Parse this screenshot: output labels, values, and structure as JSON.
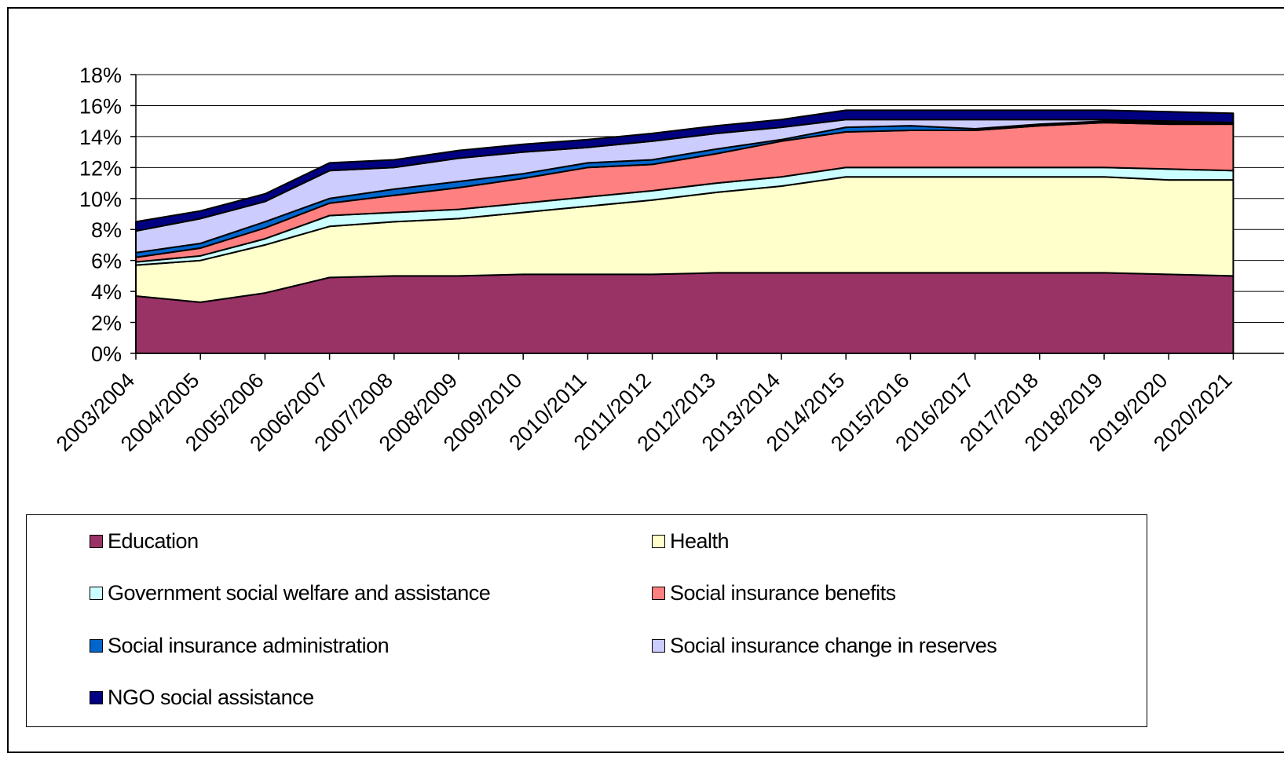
{
  "chart_data": {
    "type": "area",
    "stacked": true,
    "categories": [
      "2003/2004",
      "2004/2005",
      "2005/2006",
      "2006/2007",
      "2007/2008",
      "2008/2009",
      "2009/2010",
      "2010/2011",
      "2011/2012",
      "2012/2013",
      "2013/2014",
      "2014/2015",
      "2015/2016",
      "2016/2017",
      "2017/2018",
      "2018/2019",
      "2019/2020",
      "2020/2021"
    ],
    "y_tick_labels": [
      "0%",
      "2%",
      "4%",
      "6%",
      "8%",
      "10%",
      "12%",
      "14%",
      "16%",
      "18%"
    ],
    "ylim": [
      0,
      18
    ],
    "grid": true,
    "legend_position": "bottom",
    "series": [
      {
        "name": "Education",
        "color": "#993366",
        "values": [
          3.7,
          3.3,
          3.9,
          4.9,
          5.0,
          5.0,
          5.1,
          5.1,
          5.1,
          5.2,
          5.2,
          5.2,
          5.2,
          5.2,
          5.2,
          5.2,
          5.1,
          5.0
        ]
      },
      {
        "name": "Health",
        "color": "#FFFFCC",
        "values": [
          2.0,
          2.7,
          3.1,
          3.3,
          3.5,
          3.7,
          4.0,
          4.4,
          4.8,
          5.2,
          5.6,
          6.2,
          6.2,
          6.2,
          6.2,
          6.2,
          6.1,
          6.2
        ]
      },
      {
        "name": "Government social welfare and assistance",
        "color": "#CCFFFF",
        "values": [
          0.2,
          0.3,
          0.4,
          0.7,
          0.6,
          0.6,
          0.6,
          0.6,
          0.6,
          0.6,
          0.6,
          0.6,
          0.6,
          0.6,
          0.6,
          0.6,
          0.7,
          0.6
        ]
      },
      {
        "name": "Social insurance benefits",
        "color": "#FF8080",
        "values": [
          0.3,
          0.5,
          0.7,
          0.8,
          1.1,
          1.4,
          1.6,
          1.9,
          1.7,
          1.9,
          2.3,
          2.3,
          2.4,
          2.4,
          2.7,
          2.9,
          2.9,
          3.0
        ]
      },
      {
        "name": "Social insurance administration",
        "color": "#0066CC",
        "values": [
          0.3,
          0.3,
          0.4,
          0.3,
          0.4,
          0.4,
          0.3,
          0.3,
          0.3,
          0.3,
          0.1,
          0.3,
          0.3,
          0.1,
          0.1,
          0.1,
          0.1,
          0.1
        ]
      },
      {
        "name": "Social insurance change in reserves",
        "color": "#CCCCFF",
        "values": [
          1.4,
          1.6,
          1.3,
          1.8,
          1.4,
          1.5,
          1.4,
          1.0,
          1.2,
          1.0,
          0.8,
          0.5,
          0.4,
          0.6,
          0.3,
          0.1,
          0.1,
          0.0
        ]
      },
      {
        "name": "NGO social assistance",
        "color": "#000080",
        "values": [
          0.6,
          0.5,
          0.5,
          0.5,
          0.5,
          0.5,
          0.5,
          0.5,
          0.5,
          0.5,
          0.5,
          0.6,
          0.6,
          0.6,
          0.6,
          0.6,
          0.6,
          0.6
        ]
      }
    ]
  }
}
